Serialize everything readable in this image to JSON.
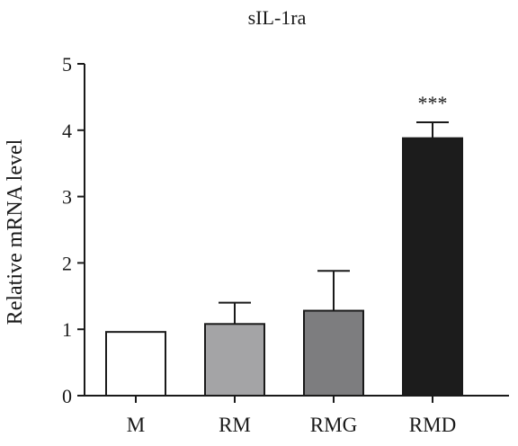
{
  "chart_data": {
    "type": "bar",
    "title": "sIL-1ra",
    "xlabel": "",
    "ylabel": "Relative mRNA level",
    "ylim": [
      0,
      5
    ],
    "yticks": [
      0,
      1,
      2,
      3,
      4,
      5
    ],
    "grid": false,
    "categories": [
      "M",
      "RM",
      "RMG",
      "RMD"
    ],
    "values": [
      0.96,
      1.08,
      1.28,
      3.88
    ],
    "errors": [
      0,
      0.32,
      0.6,
      0.24
    ],
    "colors": [
      "#ffffff",
      "#a4a4a6",
      "#7d7d7f",
      "#1c1c1c"
    ],
    "annotations": [
      "",
      "",
      "",
      "***"
    ]
  }
}
